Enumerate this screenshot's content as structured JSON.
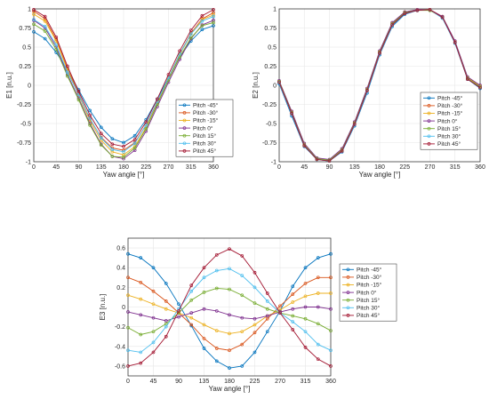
{
  "figure": {
    "description_free": true
  },
  "chart_data": [
    {
      "type": "line",
      "xlabel": "Yaw angle [°]",
      "ylabel": "E1 [n.u.]",
      "xlim": [
        0,
        360
      ],
      "ylim": [
        -1,
        1
      ],
      "xticks": [
        "0",
        "45",
        "90",
        "135",
        "180",
        "225",
        "270",
        "315",
        "360"
      ],
      "yticks": [
        "-1",
        "-0.75",
        "-0.5",
        "-0.25",
        "0",
        "0.25",
        "0.5",
        "0.75",
        "1"
      ],
      "grid": true,
      "legend": "lower-right",
      "x": [
        0,
        22.5,
        45,
        67.5,
        90,
        112.5,
        135,
        157.5,
        180,
        202.5,
        225,
        247.5,
        270,
        292.5,
        315,
        337.5,
        360
      ],
      "series": [
        {
          "name": "Pitch -45°",
          "color": "#0072BD",
          "values": [
            0.7,
            0.61,
            0.43,
            0.2,
            -0.06,
            -0.33,
            -0.55,
            -0.7,
            -0.75,
            -0.66,
            -0.45,
            -0.18,
            0.1,
            0.37,
            0.58,
            0.73,
            0.78
          ]
        },
        {
          "name": "Pitch -30°",
          "color": "#D95319",
          "values": [
            0.97,
            0.87,
            0.6,
            0.22,
            -0.11,
            -0.44,
            -0.68,
            -0.82,
            -0.85,
            -0.75,
            -0.52,
            -0.22,
            0.1,
            0.41,
            0.68,
            0.87,
            0.95
          ]
        },
        {
          "name": "Pitch -15°",
          "color": "#EDB120",
          "values": [
            0.93,
            0.84,
            0.58,
            0.2,
            -0.13,
            -0.46,
            -0.72,
            -0.87,
            -0.91,
            -0.8,
            -0.55,
            -0.24,
            0.08,
            0.4,
            0.67,
            0.86,
            0.92
          ]
        },
        {
          "name": "Pitch 0°",
          "color": "#7E2F8E",
          "values": [
            0.85,
            0.75,
            0.5,
            0.14,
            -0.17,
            -0.5,
            -0.77,
            -0.93,
            -0.96,
            -0.85,
            -0.6,
            -0.28,
            0.04,
            0.34,
            0.61,
            0.79,
            0.85
          ]
        },
        {
          "name": "Pitch 15°",
          "color": "#77AC30",
          "values": [
            0.8,
            0.71,
            0.47,
            0.12,
            -0.19,
            -0.52,
            -0.78,
            -0.93,
            -0.94,
            -0.82,
            -0.57,
            -0.25,
            0.07,
            0.37,
            0.62,
            0.78,
            0.82
          ]
        },
        {
          "name": "Pitch 30°",
          "color": "#4DBEEE",
          "values": [
            0.86,
            0.77,
            0.53,
            0.17,
            -0.12,
            -0.43,
            -0.69,
            -0.84,
            -0.87,
            -0.76,
            -0.52,
            -0.21,
            0.1,
            0.41,
            0.67,
            0.84,
            0.9
          ]
        },
        {
          "name": "Pitch 45°",
          "color": "#A2142F",
          "values": [
            0.99,
            0.9,
            0.63,
            0.25,
            -0.08,
            -0.39,
            -0.63,
            -0.77,
            -0.8,
            -0.71,
            -0.48,
            -0.18,
            0.14,
            0.45,
            0.72,
            0.91,
            0.99
          ]
        }
      ]
    },
    {
      "type": "line",
      "xlabel": "Yaw angle [°]",
      "ylabel": "E2 [n.u.]",
      "xlim": [
        0,
        360
      ],
      "ylim": [
        -1,
        1
      ],
      "xticks": [
        "0",
        "45",
        "90",
        "135",
        "180",
        "225",
        "270",
        "315",
        "360"
      ],
      "yticks": [
        "-1",
        "-0.75",
        "-0.5",
        "-0.25",
        "0",
        "0.25",
        "0.5",
        "0.75",
        "1"
      ],
      "grid": true,
      "legend": "lower-right",
      "x": [
        0,
        22.5,
        45,
        67.5,
        90,
        112.5,
        135,
        157.5,
        180,
        202.5,
        225,
        247.5,
        270,
        292.5,
        315,
        337.5,
        360
      ],
      "series": [
        {
          "name": "Pitch -45°",
          "color": "#0072BD",
          "values": [
            0.02,
            -0.4,
            -0.8,
            -0.97,
            -0.99,
            -0.87,
            -0.53,
            -0.1,
            0.4,
            0.77,
            0.93,
            0.98,
            0.99,
            0.88,
            0.55,
            0.08,
            -0.04
          ]
        },
        {
          "name": "Pitch -30°",
          "color": "#D95319",
          "values": [
            0.04,
            -0.36,
            -0.78,
            -0.96,
            -0.98,
            -0.85,
            -0.5,
            -0.06,
            0.43,
            0.8,
            0.95,
            0.99,
            0.99,
            0.89,
            0.56,
            0.09,
            -0.02
          ]
        },
        {
          "name": "Pitch -15°",
          "color": "#EDB120",
          "values": [
            0.05,
            -0.35,
            -0.77,
            -0.96,
            -0.98,
            -0.84,
            -0.49,
            -0.05,
            0.44,
            0.81,
            0.96,
            0.99,
            0.99,
            0.9,
            0.57,
            0.1,
            -0.01
          ]
        },
        {
          "name": "Pitch 0°",
          "color": "#7E2F8E",
          "values": [
            0.06,
            -0.34,
            -0.76,
            -0.95,
            -0.97,
            -0.83,
            -0.48,
            -0.04,
            0.45,
            0.82,
            0.96,
            0.99,
            0.99,
            0.9,
            0.58,
            0.11,
            0.0
          ]
        },
        {
          "name": "Pitch 15°",
          "color": "#77AC30",
          "values": [
            0.05,
            -0.36,
            -0.78,
            -0.96,
            -0.98,
            -0.85,
            -0.5,
            -0.06,
            0.43,
            0.8,
            0.95,
            0.98,
            0.98,
            0.89,
            0.56,
            0.09,
            -0.02
          ]
        },
        {
          "name": "Pitch 30°",
          "color": "#4DBEEE",
          "values": [
            0.03,
            -0.38,
            -0.79,
            -0.97,
            -0.99,
            -0.86,
            -0.52,
            -0.08,
            0.41,
            0.78,
            0.94,
            0.98,
            0.99,
            0.88,
            0.55,
            0.08,
            -0.03
          ]
        },
        {
          "name": "Pitch 45°",
          "color": "#A2142F",
          "values": [
            0.04,
            -0.37,
            -0.79,
            -0.97,
            -0.99,
            -0.86,
            -0.51,
            -0.07,
            0.42,
            0.79,
            0.94,
            0.98,
            0.99,
            0.89,
            0.56,
            0.08,
            -0.03
          ]
        }
      ]
    },
    {
      "type": "line",
      "xlabel": "Yaw angle [°]",
      "ylabel": "E3 [n.u.]",
      "xlim": [
        0,
        360
      ],
      "ylim": [
        -0.7,
        0.7
      ],
      "xticks": [
        "0",
        "45",
        "90",
        "135",
        "180",
        "225",
        "270",
        "315",
        "360"
      ],
      "yticks": [
        "-0.6",
        "-0.4",
        "-0.2",
        "0",
        "0.2",
        "0.4",
        "0.6"
      ],
      "grid": true,
      "legend": "right-top",
      "x": [
        0,
        22.5,
        45,
        67.5,
        90,
        112.5,
        135,
        157.5,
        180,
        202.5,
        225,
        247.5,
        270,
        292.5,
        315,
        337.5,
        360
      ],
      "series": [
        {
          "name": "Pitch -45°",
          "color": "#0072BD",
          "values": [
            0.54,
            0.5,
            0.4,
            0.24,
            0.03,
            -0.19,
            -0.42,
            -0.55,
            -0.62,
            -0.6,
            -0.46,
            -0.25,
            -0.04,
            0.21,
            0.4,
            0.5,
            0.54
          ]
        },
        {
          "name": "Pitch -30°",
          "color": "#D95319",
          "values": [
            0.3,
            0.25,
            0.16,
            0.06,
            -0.06,
            -0.18,
            -0.32,
            -0.42,
            -0.44,
            -0.38,
            -0.26,
            -0.12,
            0.01,
            0.13,
            0.24,
            0.3,
            0.3
          ]
        },
        {
          "name": "Pitch -15°",
          "color": "#EDB120",
          "values": [
            0.12,
            0.08,
            0.03,
            -0.02,
            -0.06,
            -0.11,
            -0.18,
            -0.24,
            -0.27,
            -0.25,
            -0.18,
            -0.09,
            -0.03,
            0.05,
            0.11,
            0.14,
            0.14
          ]
        },
        {
          "name": "Pitch 0°",
          "color": "#7E2F8E",
          "values": [
            -0.05,
            -0.08,
            -0.11,
            -0.14,
            -0.1,
            -0.06,
            -0.02,
            -0.04,
            -0.08,
            -0.11,
            -0.12,
            -0.09,
            -0.05,
            -0.02,
            0.0,
            0.0,
            -0.02
          ]
        },
        {
          "name": "Pitch 15°",
          "color": "#77AC30",
          "values": [
            -0.21,
            -0.28,
            -0.25,
            -0.17,
            -0.06,
            0.07,
            0.15,
            0.19,
            0.18,
            0.12,
            0.04,
            -0.02,
            -0.06,
            -0.09,
            -0.12,
            -0.17,
            -0.24
          ]
        },
        {
          "name": "Pitch 30°",
          "color": "#4DBEEE",
          "values": [
            -0.44,
            -0.46,
            -0.36,
            -0.2,
            -0.02,
            0.16,
            0.3,
            0.37,
            0.39,
            0.32,
            0.2,
            0.06,
            -0.06,
            -0.15,
            -0.25,
            -0.38,
            -0.44
          ]
        },
        {
          "name": "Pitch 45°",
          "color": "#A2142F",
          "values": [
            -0.6,
            -0.57,
            -0.46,
            -0.3,
            -0.04,
            0.22,
            0.4,
            0.53,
            0.59,
            0.52,
            0.35,
            0.14,
            -0.06,
            -0.23,
            -0.41,
            -0.53,
            -0.6
          ]
        }
      ]
    }
  ]
}
